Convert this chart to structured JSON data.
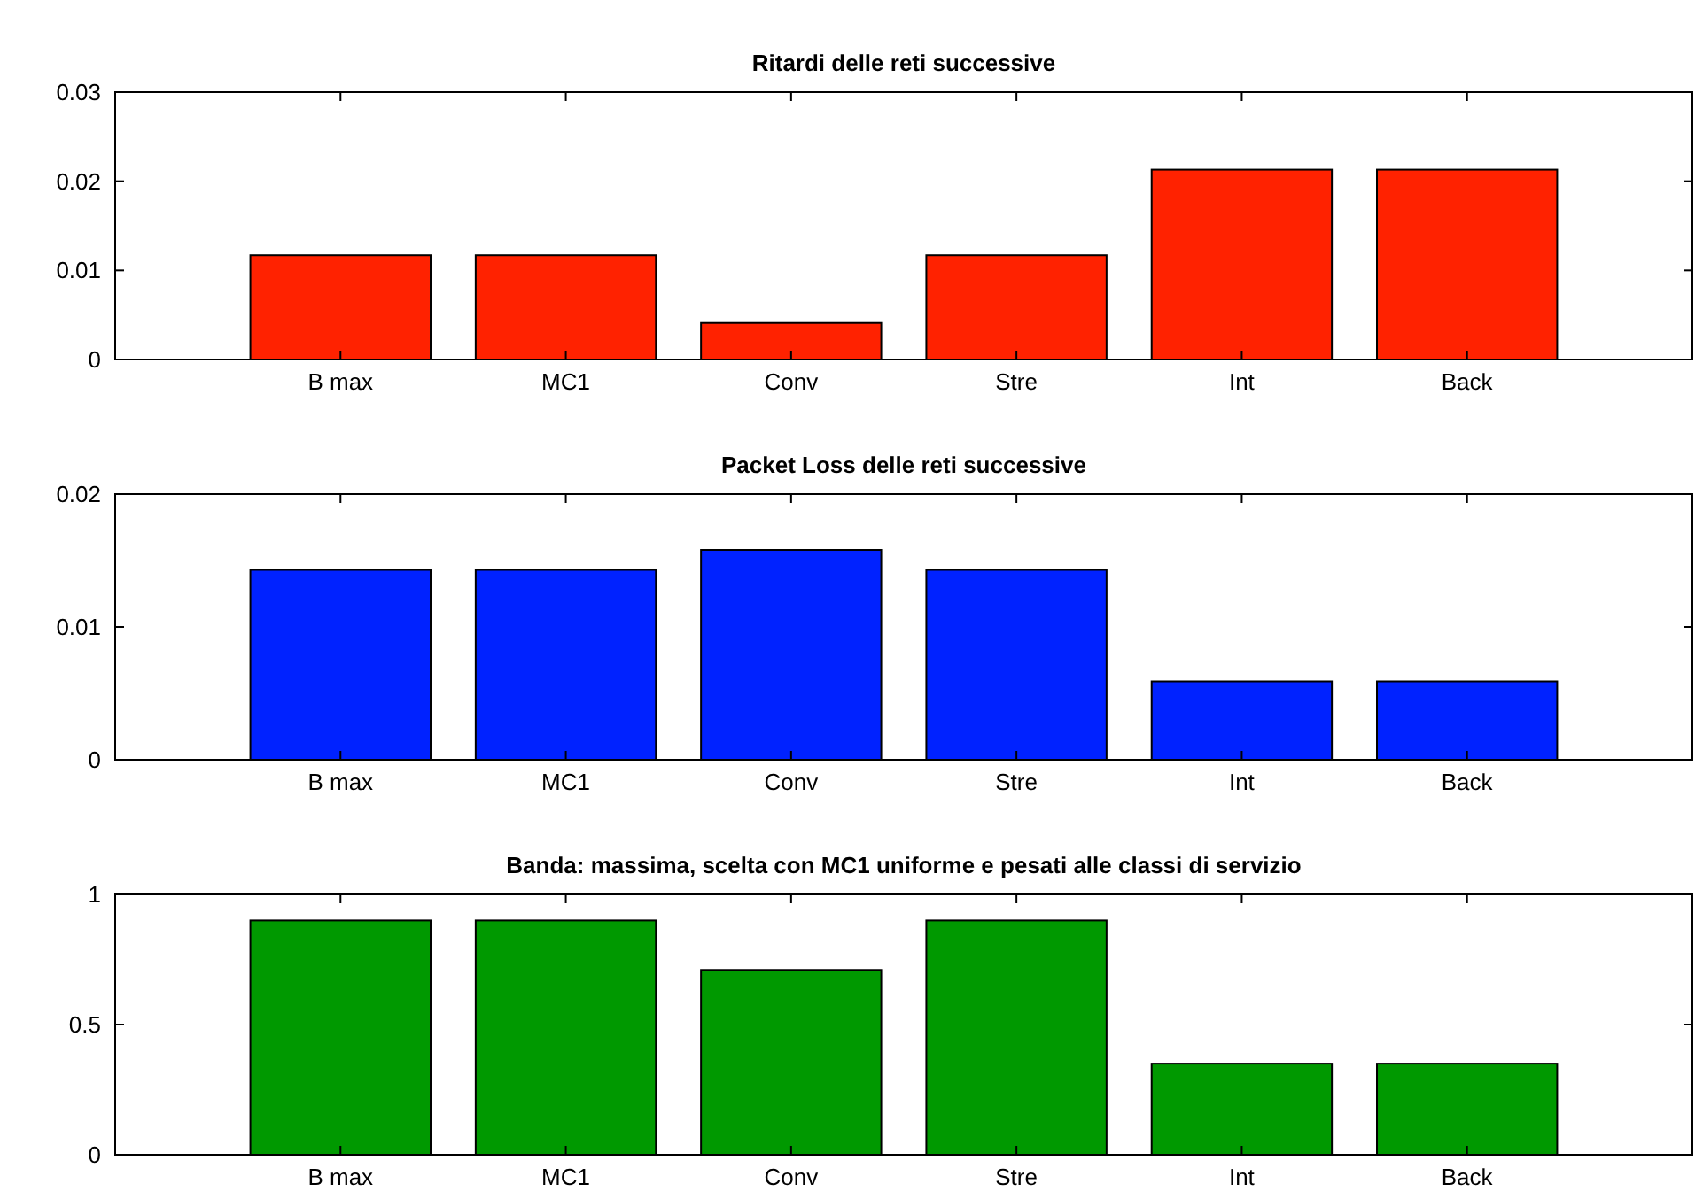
{
  "chart_data": [
    {
      "type": "bar",
      "title": "Ritardi delle reti successive",
      "categories": [
        "B max",
        "MC1",
        "Conv",
        "Stre",
        "Int",
        "Back"
      ],
      "values": [
        0.0117,
        0.0117,
        0.0041,
        0.0117,
        0.0213,
        0.0213
      ],
      "color": "#ff2200",
      "ylim": [
        0,
        0.03
      ],
      "yticks": [
        0,
        0.01,
        0.02,
        0.03
      ]
    },
    {
      "type": "bar",
      "title": "Packet Loss delle reti successive",
      "categories": [
        "B max",
        "MC1",
        "Conv",
        "Stre",
        "Int",
        "Back"
      ],
      "values": [
        0.0143,
        0.0143,
        0.0158,
        0.0143,
        0.0059,
        0.0059
      ],
      "color": "#0022ff",
      "ylim": [
        0,
        0.02
      ],
      "yticks": [
        0,
        0.01,
        0.02
      ]
    },
    {
      "type": "bar",
      "title": "Banda: massima, scelta con MC1 uniforme e pesati alle classi di servizio",
      "categories": [
        "B max",
        "MC1",
        "Conv",
        "Stre",
        "Int",
        "Back"
      ],
      "values": [
        0.9,
        0.9,
        0.71,
        0.9,
        0.35,
        0.35
      ],
      "color": "#009900",
      "ylim": [
        0,
        1
      ],
      "yticks": [
        0,
        {
          "value": 0.5,
          "label": "0.5"
        },
        1
      ]
    }
  ]
}
